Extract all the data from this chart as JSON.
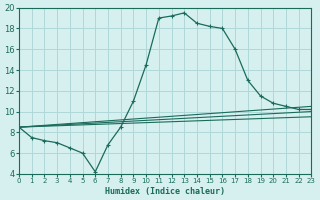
{
  "title": "",
  "xlabel": "Humidex (Indice chaleur)",
  "ylabel": "",
  "bg_color": "#d6f0f0",
  "grid_color": "#b0d8d8",
  "line_color": "#1a6b5a",
  "xlim": [
    0,
    23
  ],
  "ylim": [
    4,
    20
  ],
  "xticks": [
    0,
    1,
    2,
    3,
    4,
    5,
    6,
    7,
    8,
    9,
    10,
    11,
    12,
    13,
    14,
    15,
    16,
    17,
    18,
    19,
    20,
    21,
    22,
    23
  ],
  "yticks": [
    4,
    6,
    8,
    10,
    12,
    14,
    16,
    18,
    20
  ],
  "main_curve_x": [
    0,
    1,
    2,
    3,
    4,
    5,
    6,
    7,
    8,
    9,
    10,
    11,
    12,
    13,
    14,
    15,
    16,
    17,
    18,
    19,
    20,
    21,
    22,
    23
  ],
  "main_curve_y": [
    8.5,
    7.5,
    7.2,
    7.0,
    6.5,
    6.0,
    4.2,
    6.8,
    8.5,
    11.0,
    14.5,
    19.0,
    19.2,
    19.5,
    18.5,
    18.2,
    18.0,
    16.0,
    13.0,
    11.5,
    10.8,
    10.5,
    10.2,
    10.2
  ],
  "straight_lines": [
    {
      "x": [
        0,
        23
      ],
      "y": [
        8.5,
        10.5
      ]
    },
    {
      "x": [
        0,
        23
      ],
      "y": [
        8.5,
        10.0
      ]
    },
    {
      "x": [
        0,
        23
      ],
      "y": [
        8.5,
        9.5
      ]
    }
  ]
}
